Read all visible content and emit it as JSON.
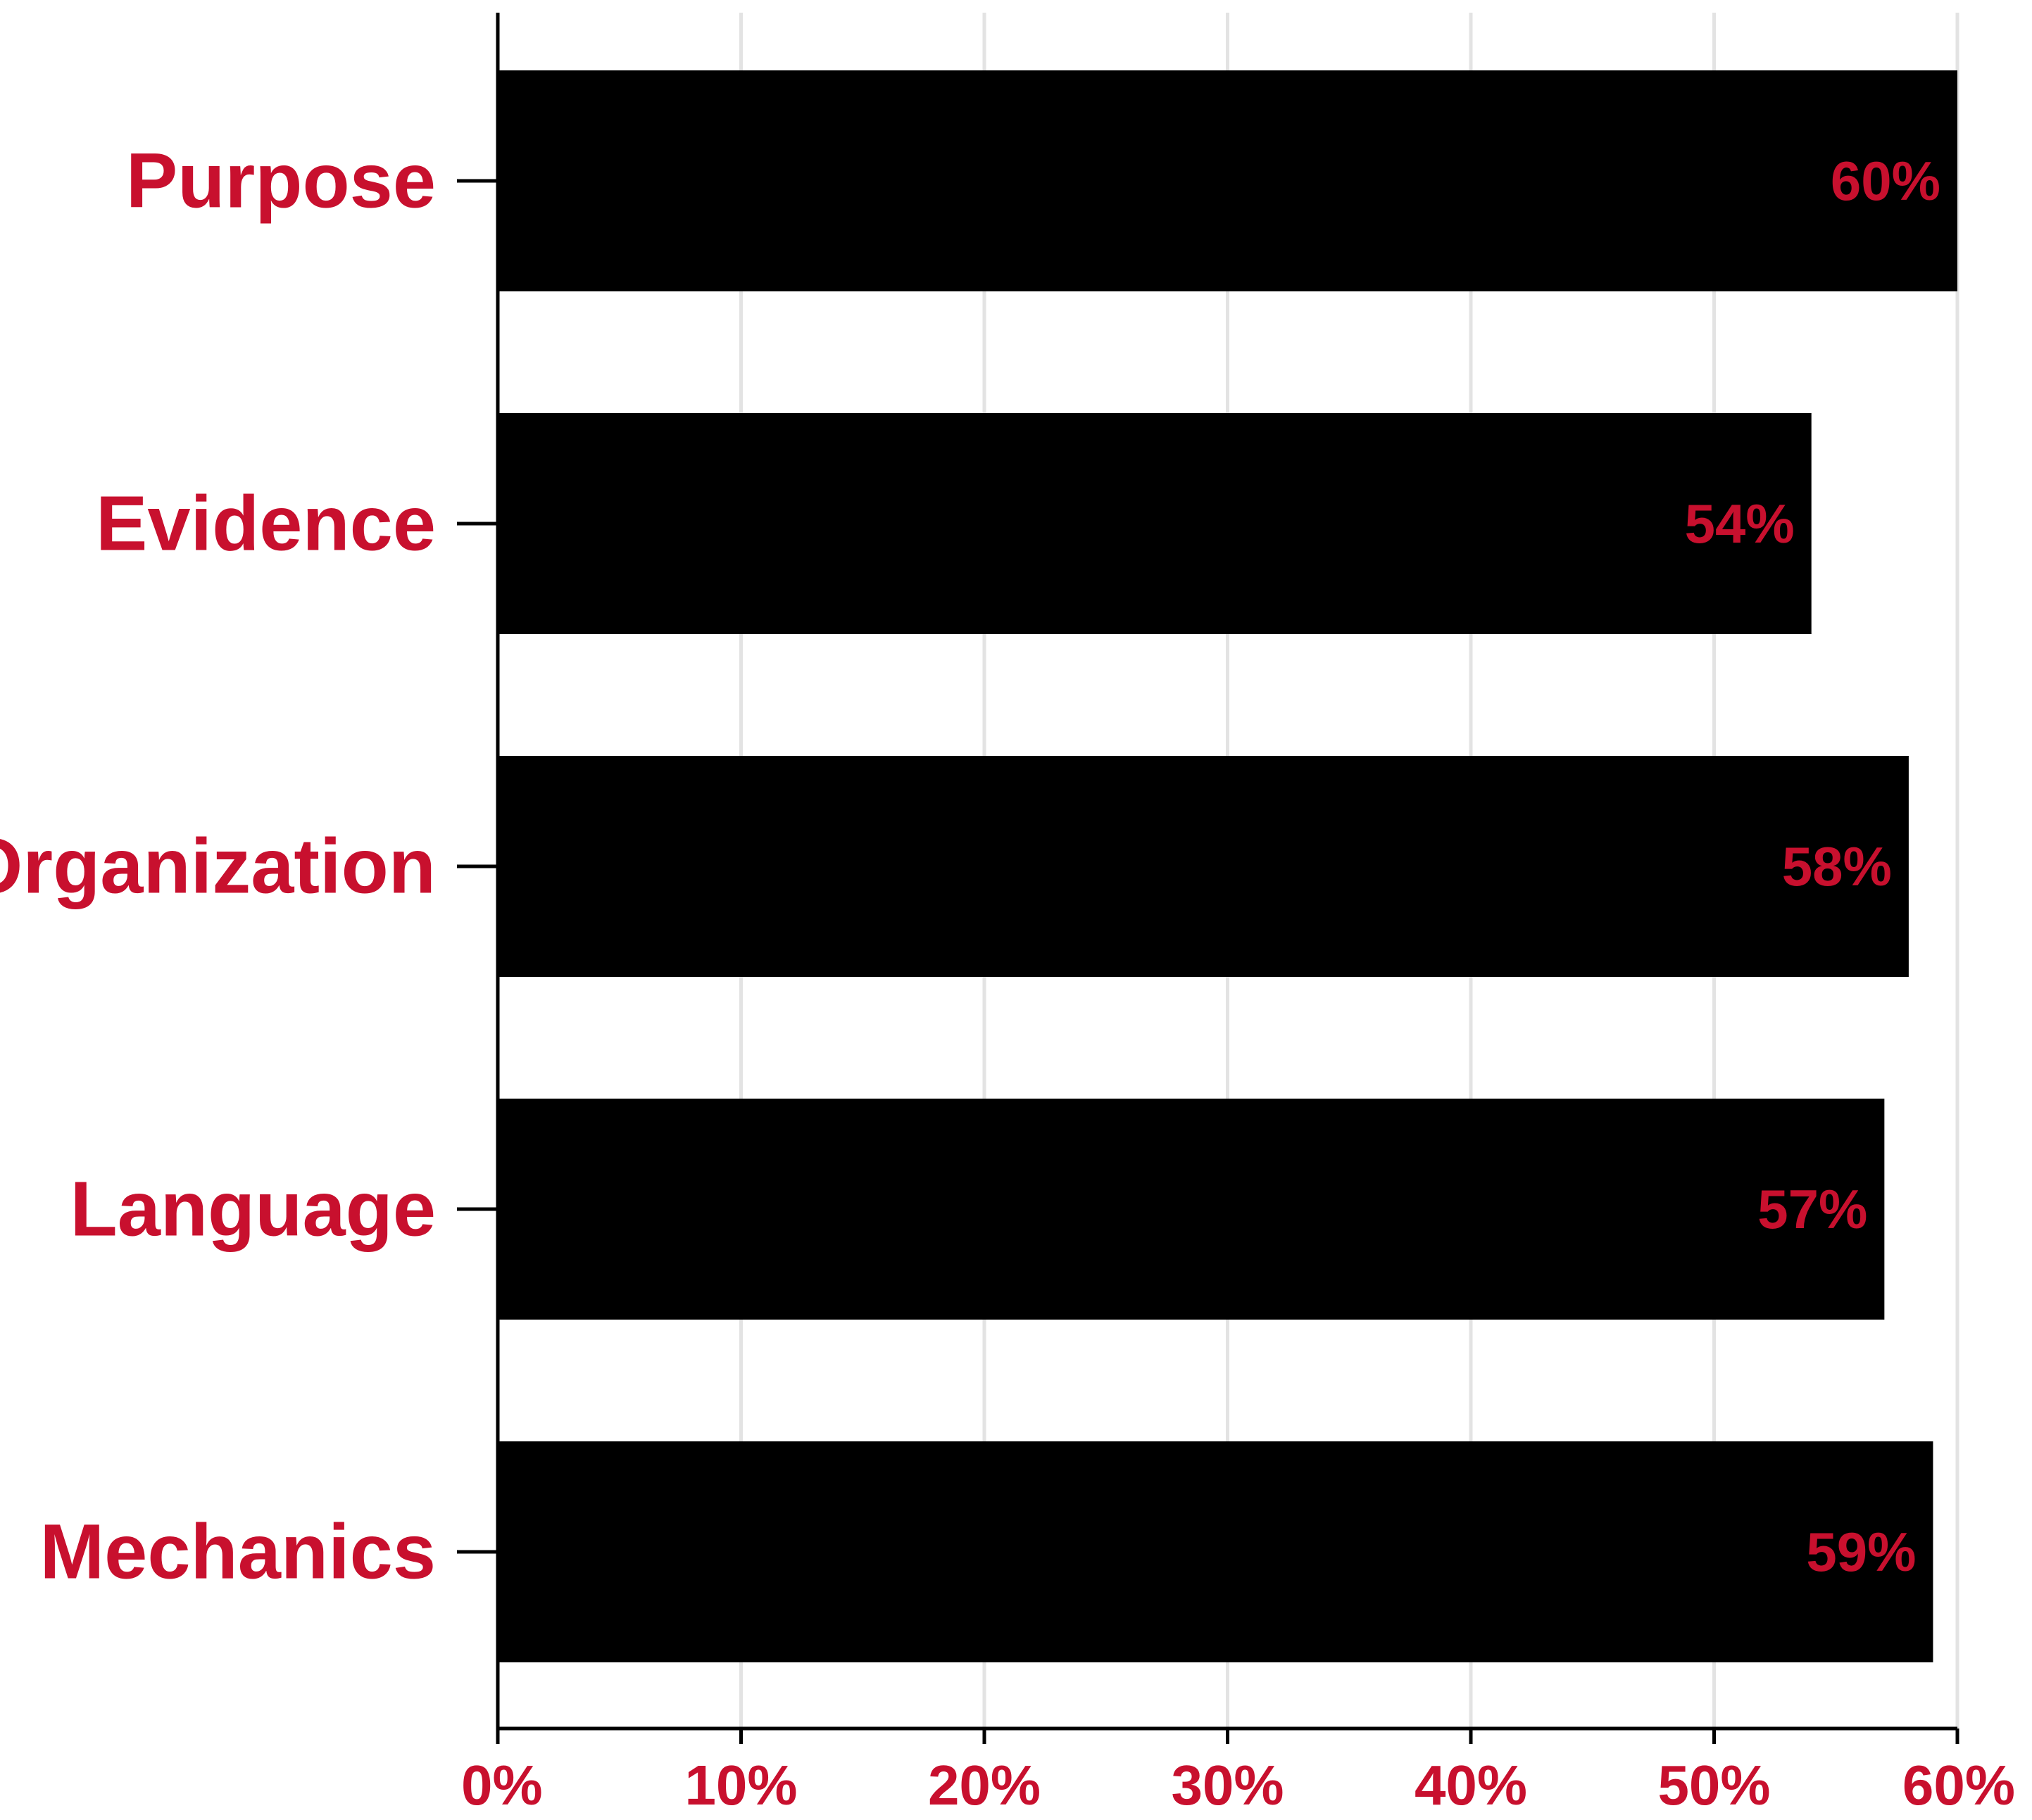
{
  "chart_data": {
    "type": "bar",
    "orientation": "horizontal",
    "categories": [
      "Purpose",
      "Evidence",
      "Organization",
      "Language",
      "Mechanics"
    ],
    "values": [
      60,
      54,
      58,
      57,
      59
    ],
    "value_labels": [
      "60%",
      "54%",
      "58%",
      "57%",
      "59%"
    ],
    "xlim": [
      0,
      60
    ],
    "xticks": [
      0,
      10,
      20,
      30,
      40,
      50,
      60
    ],
    "xtick_labels": [
      "0%",
      "10%",
      "20%",
      "30%",
      "40%",
      "50%",
      "60%"
    ],
    "title": "",
    "xlabel": "",
    "ylabel": "",
    "grid": "vertical",
    "legend": "none"
  },
  "colors": {
    "bar": "#000000",
    "label": "#c8102e",
    "grid": "#e3e3e3",
    "axis": "#000000",
    "background": "#ffffff"
  }
}
